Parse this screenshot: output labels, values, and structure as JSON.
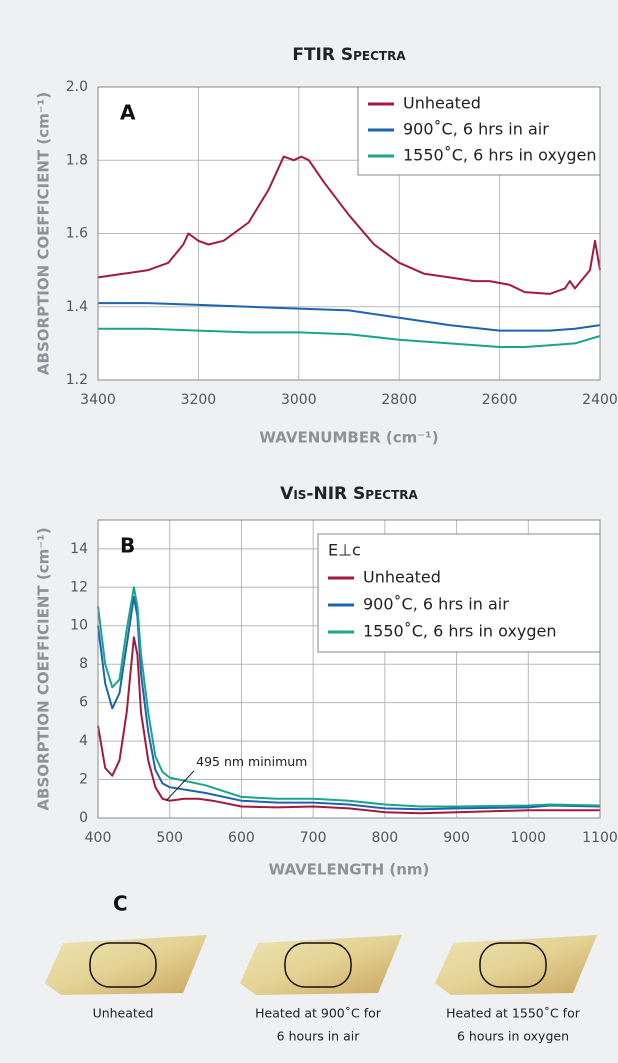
{
  "chart_data": [
    {
      "type": "line",
      "title": "FTIR Spectra",
      "panel_label": "A",
      "x_label": "WAVENUMBER (cm⁻¹)",
      "y_label": "ABSORPTION COEFFICIENT (cm⁻¹)",
      "xlim": [
        3400,
        2400
      ],
      "xticks": [
        3400,
        3200,
        3000,
        2800,
        2600,
        2400
      ],
      "ylim": [
        1.2,
        2.0
      ],
      "yticks": [
        1.2,
        1.4,
        1.6,
        1.8,
        {
          "value": 2.0,
          "label": "2.0"
        }
      ],
      "grid": true,
      "legend": "upper right",
      "series": [
        {
          "name": "Unheated",
          "color": "#a31a3f",
          "x": [
            3400,
            3350,
            3300,
            3260,
            3230,
            3220,
            3200,
            3180,
            3150,
            3100,
            3060,
            3040,
            3030,
            3010,
            2995,
            2980,
            2950,
            2900,
            2850,
            2800,
            2750,
            2700,
            2650,
            2620,
            2580,
            2550,
            2500,
            2470,
            2460,
            2450,
            2420,
            2410,
            2400
          ],
          "values": [
            1.48,
            1.49,
            1.5,
            1.52,
            1.57,
            1.6,
            1.58,
            1.57,
            1.58,
            1.63,
            1.72,
            1.78,
            1.81,
            1.8,
            1.81,
            1.8,
            1.74,
            1.65,
            1.57,
            1.52,
            1.49,
            1.48,
            1.47,
            1.47,
            1.46,
            1.44,
            1.435,
            1.45,
            1.47,
            1.45,
            1.5,
            1.58,
            1.5
          ]
        },
        {
          "name": "900˚C, 6 hrs in air",
          "color": "#1c63b0",
          "x": [
            3400,
            3300,
            3200,
            3100,
            3000,
            2900,
            2800,
            2700,
            2600,
            2500,
            2450,
            2400
          ],
          "values": [
            1.41,
            1.41,
            1.405,
            1.4,
            1.395,
            1.39,
            1.37,
            1.35,
            1.335,
            1.335,
            1.34,
            1.35
          ]
        },
        {
          "name": "1550˚C, 6 hrs in oxygen",
          "color": "#1aa58a",
          "x": [
            3400,
            3300,
            3200,
            3100,
            3000,
            2900,
            2800,
            2700,
            2600,
            2550,
            2500,
            2450,
            2400
          ],
          "values": [
            1.34,
            1.34,
            1.335,
            1.33,
            1.33,
            1.325,
            1.31,
            1.3,
            1.29,
            1.29,
            1.295,
            1.3,
            1.32
          ]
        }
      ]
    },
    {
      "type": "line",
      "title": "Vis-NIR Spectra",
      "panel_label": "B",
      "x_label": "WAVELENGTH (nm)",
      "y_label": "ABSORPTION COEFFICIENT (cm⁻¹)",
      "xlim": [
        400,
        1100
      ],
      "xticks": [
        400,
        500,
        600,
        700,
        800,
        900,
        1000,
        1100
      ],
      "ylim": [
        0,
        15.5
      ],
      "yticks": [
        0,
        2,
        4,
        6,
        8,
        10,
        12,
        14
      ],
      "grid": true,
      "legend": "upper right",
      "legend_title": "E⊥c",
      "annotation": {
        "text": "495 nm minimum",
        "x": 495,
        "y": 0.9
      },
      "series": [
        {
          "name": "Unheated",
          "color": "#a31a3f",
          "x": [
            400,
            410,
            420,
            430,
            440,
            450,
            455,
            460,
            470,
            480,
            490,
            500,
            520,
            540,
            560,
            600,
            650,
            700,
            750,
            800,
            850,
            900,
            1000,
            1100
          ],
          "values": [
            4.8,
            2.6,
            2.2,
            3.0,
            5.5,
            9.4,
            8.5,
            5.5,
            3.0,
            1.6,
            1.0,
            0.9,
            1.0,
            1.0,
            0.9,
            0.6,
            0.55,
            0.6,
            0.5,
            0.3,
            0.25,
            0.3,
            0.4,
            0.4
          ]
        },
        {
          "name": "900˚C, 6 hrs in air",
          "color": "#1c63b0",
          "x": [
            400,
            410,
            420,
            430,
            440,
            450,
            455,
            460,
            470,
            480,
            490,
            500,
            550,
            600,
            650,
            700,
            750,
            800,
            850,
            900,
            1000,
            1030,
            1100
          ],
          "values": [
            10.0,
            7.0,
            5.7,
            6.5,
            9.0,
            11.5,
            10.5,
            7.5,
            4.5,
            2.5,
            1.8,
            1.6,
            1.3,
            0.9,
            0.8,
            0.8,
            0.7,
            0.5,
            0.45,
            0.5,
            0.55,
            0.65,
            0.6
          ]
        },
        {
          "name": "1550˚C, 6 hrs in oxygen",
          "color": "#1aa58a",
          "x": [
            400,
            410,
            420,
            430,
            440,
            450,
            455,
            460,
            470,
            480,
            490,
            500,
            550,
            600,
            650,
            700,
            750,
            800,
            850,
            900,
            1000,
            1030,
            1100
          ],
          "values": [
            11.0,
            8.0,
            6.8,
            7.2,
            9.8,
            12.0,
            11.0,
            8.5,
            5.5,
            3.2,
            2.4,
            2.1,
            1.7,
            1.1,
            1.0,
            1.0,
            0.9,
            0.7,
            0.6,
            0.6,
            0.65,
            0.7,
            0.65
          ]
        }
      ]
    }
  ],
  "panel_c": {
    "label": "C",
    "captions": [
      [
        "Unheated"
      ],
      [
        "Heated at 900˚C for",
        "6 hours in air"
      ],
      [
        "Heated at 1550˚C for",
        "6 hours in oxygen"
      ]
    ]
  }
}
